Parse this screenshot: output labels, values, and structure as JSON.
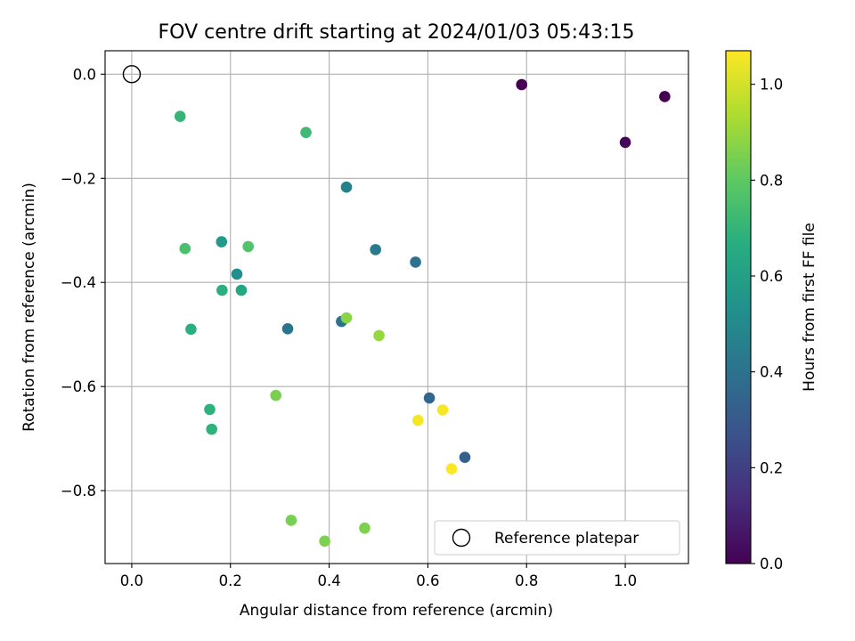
{
  "chart_data": {
    "type": "scatter",
    "title": "FOV centre drift starting at 2024/01/03 05:43:15",
    "xlabel": "Angular distance from reference (arcmin)",
    "ylabel": "Rotation from reference (arcmin)",
    "xlim": [
      -0.054,
      1.128
    ],
    "ylim": [
      -0.94,
      0.045
    ],
    "xticks": [
      0.0,
      0.2,
      0.4,
      0.6,
      0.8,
      1.0
    ],
    "xtick_labels": [
      "0.0",
      "0.2",
      "0.4",
      "0.6",
      "0.8",
      "1.0"
    ],
    "yticks": [
      0.0,
      -0.2,
      -0.4,
      -0.6,
      -0.8
    ],
    "ytick_labels": [
      "0.0",
      "−0.2",
      "−0.4",
      "−0.6",
      "−0.8"
    ],
    "grid": true,
    "colormap": "viridis",
    "colorbar": {
      "label": "Hours from first FF file",
      "range": [
        0.0,
        1.07
      ],
      "ticks": [
        0.0,
        0.2,
        0.4,
        0.6,
        0.8,
        1.0
      ],
      "tick_labels": [
        "0.0",
        "0.2",
        "0.4",
        "0.6",
        "0.8",
        "1.0"
      ]
    },
    "reference": {
      "x": 0.0,
      "y": 0.0,
      "label": "Reference platepar"
    },
    "legend": {
      "position": "lower-right",
      "entries": [
        "Reference platepar"
      ]
    },
    "points": [
      {
        "x": 0.79,
        "y": -0.02,
        "hours": 0.0
      },
      {
        "x": 1.08,
        "y": -0.043,
        "hours": 0.0
      },
      {
        "x": 1.0,
        "y": -0.131,
        "hours": 0.02
      },
      {
        "x": 0.675,
        "y": -0.736,
        "hours": 0.33
      },
      {
        "x": 0.603,
        "y": -0.622,
        "hours": 0.36
      },
      {
        "x": 0.575,
        "y": -0.361,
        "hours": 0.4
      },
      {
        "x": 0.425,
        "y": -0.475,
        "hours": 0.4
      },
      {
        "x": 0.316,
        "y": -0.489,
        "hours": 0.42
      },
      {
        "x": 0.494,
        "y": -0.337,
        "hours": 0.44
      },
      {
        "x": 0.435,
        "y": -0.217,
        "hours": 0.47
      },
      {
        "x": 0.213,
        "y": -0.384,
        "hours": 0.53
      },
      {
        "x": 0.182,
        "y": -0.322,
        "hours": 0.58
      },
      {
        "x": 0.222,
        "y": -0.415,
        "hours": 0.64
      },
      {
        "x": 0.183,
        "y": -0.415,
        "hours": 0.68
      },
      {
        "x": 0.12,
        "y": -0.49,
        "hours": 0.68
      },
      {
        "x": 0.158,
        "y": -0.644,
        "hours": 0.69
      },
      {
        "x": 0.162,
        "y": -0.682,
        "hours": 0.69
      },
      {
        "x": 0.098,
        "y": -0.081,
        "hours": 0.71
      },
      {
        "x": 0.353,
        "y": -0.112,
        "hours": 0.73
      },
      {
        "x": 0.108,
        "y": -0.335,
        "hours": 0.76
      },
      {
        "x": 0.236,
        "y": -0.331,
        "hours": 0.78
      },
      {
        "x": 0.292,
        "y": -0.617,
        "hours": 0.85
      },
      {
        "x": 0.323,
        "y": -0.857,
        "hours": 0.85
      },
      {
        "x": 0.391,
        "y": -0.897,
        "hours": 0.86
      },
      {
        "x": 0.472,
        "y": -0.872,
        "hours": 0.86
      },
      {
        "x": 0.435,
        "y": -0.468,
        "hours": 0.88
      },
      {
        "x": 0.501,
        "y": -0.502,
        "hours": 0.9
      },
      {
        "x": 0.58,
        "y": -0.665,
        "hours": 1.06
      },
      {
        "x": 0.63,
        "y": -0.645,
        "hours": 1.06
      },
      {
        "x": 0.648,
        "y": -0.758,
        "hours": 1.07
      }
    ]
  }
}
